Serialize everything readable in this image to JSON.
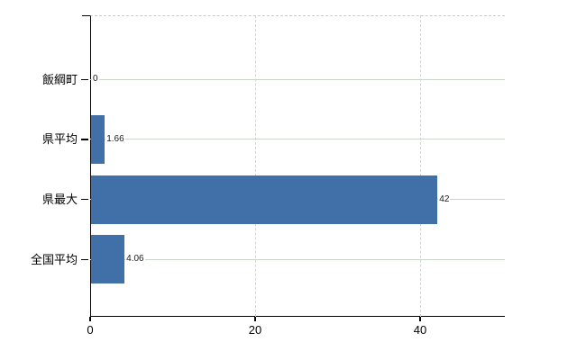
{
  "chart_data": {
    "type": "bar",
    "orientation": "horizontal",
    "title": "",
    "xlabel": "",
    "ylabel": "",
    "categories": [
      "飯綱町",
      "県平均",
      "県最大",
      "全国平均"
    ],
    "values": [
      0,
      1.66,
      42,
      4.06
    ],
    "value_labels": [
      "0",
      "1.66",
      "42",
      "4.06"
    ],
    "xticks": [
      0,
      20,
      40
    ],
    "xtick_labels": [
      "0",
      "20",
      "40"
    ],
    "xlim": [
      0,
      50.3
    ],
    "bar_color": "#4170a8",
    "grid": {
      "horizontal_color": "#ccd5cc",
      "vertical_color": "#d2d2d8",
      "top_border_style": "dashed"
    },
    "axis_color": "#000000",
    "legend_position": "none",
    "background_color": "#ffffff"
  }
}
